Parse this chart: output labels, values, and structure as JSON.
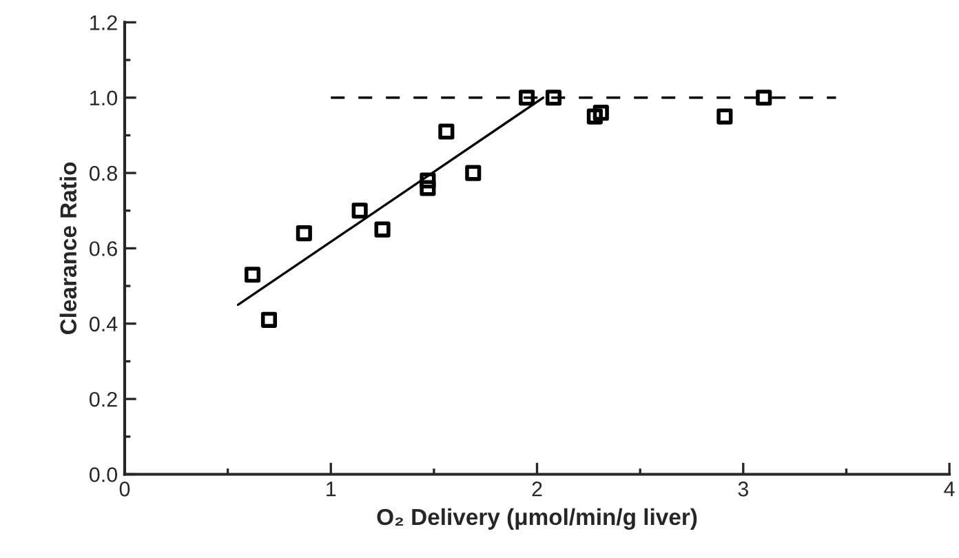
{
  "chart_data": {
    "type": "scatter",
    "xlabel": "O₂ Delivery (μmol/min/g liver)",
    "ylabel": "Clearance Ratio",
    "xlim": [
      0,
      4
    ],
    "xticks": [
      0,
      1,
      2,
      3,
      4
    ],
    "ylim": [
      0,
      1.2
    ],
    "yticks": [
      {
        "value": 0,
        "label": "0.0"
      },
      0.2,
      0.4,
      0.6,
      0.8,
      {
        "value": 1,
        "label": "1.0"
      },
      1.2
    ],
    "grid": false,
    "legend": false,
    "series": [
      {
        "marker": "square",
        "color": "#000000",
        "x": [
          0.62,
          0.7,
          0.87,
          1.14,
          1.25,
          1.47,
          1.47,
          1.56,
          1.69,
          1.95,
          2.08,
          2.28,
          2.31,
          2.91,
          3.1
        ],
        "values": [
          0.53,
          0.41,
          0.64,
          0.7,
          0.65,
          0.78,
          0.76,
          0.91,
          0.8,
          1.0,
          1.0,
          0.95,
          0.96,
          0.95,
          1.0
        ]
      },
      {
        "type": "line",
        "color": "#000000",
        "line_style": "solid",
        "x": [
          0.55,
          2.03
        ],
        "values": [
          0.45,
          1.0
        ]
      },
      {
        "type": "line",
        "color": "#000000",
        "line_style": "dashed",
        "x": [
          1.0,
          3.45
        ],
        "values": [
          1.0,
          1.0
        ]
      }
    ]
  }
}
